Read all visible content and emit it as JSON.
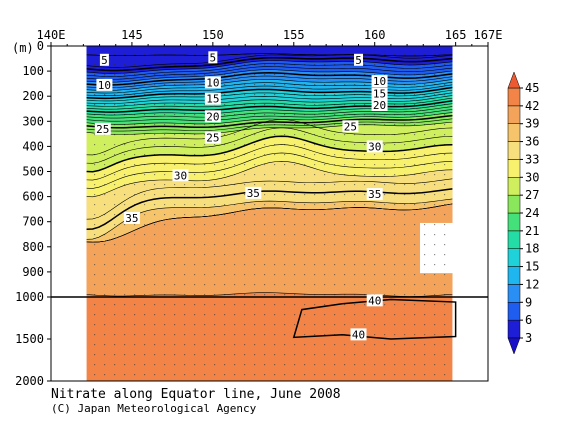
{
  "chart_data": {
    "type": "heatmap",
    "title": "Nitrate along Equator line, June 2008",
    "credit": "(C) Japan Meteorological Agency",
    "x_axis": {
      "range": [
        140,
        167
      ],
      "tick_labels": [
        "140E",
        "145",
        "150",
        "155",
        "160",
        "165",
        "167E"
      ],
      "tick_values": [
        140,
        145,
        150,
        155,
        160,
        165,
        167
      ]
    },
    "y_axis": {
      "unit_label": "(m)",
      "tick_labels": [
        "0",
        "100",
        "200",
        "300",
        "400",
        "500",
        "600",
        "700",
        "800",
        "900",
        "1000",
        "1500",
        "2000"
      ],
      "tick_values": [
        0,
        100,
        200,
        300,
        400,
        500,
        600,
        700,
        800,
        900,
        1000,
        1500,
        2000
      ],
      "scale": "piecewise linear: 0-1000 m upper panel, 1000-2000 m compressed lower panel",
      "direction": "depth increases downward"
    },
    "data_extent": {
      "lon": [
        142.2,
        164.8
      ],
      "depth": [
        0,
        2000
      ]
    },
    "colorbar": {
      "levels": [
        3,
        6,
        9,
        12,
        15,
        18,
        21,
        24,
        27,
        30,
        33,
        36,
        39,
        42,
        45
      ],
      "tick_labels": [
        "3",
        "6",
        "9",
        "12",
        "15",
        "18",
        "21",
        "24",
        "27",
        "30",
        "33",
        "36",
        "39",
        "42",
        "45"
      ],
      "colors": [
        "#1e1ed6",
        "#1f5cf0",
        "#2a8ff5",
        "#1fb5ee",
        "#1fd1d8",
        "#23dca6",
        "#44e07a",
        "#8ae65a",
        "#cfef5e",
        "#f8f16e",
        "#f8df7d",
        "#f5c46b",
        "#f3a45a",
        "#f18446"
      ]
    },
    "contour_labels": [
      {
        "text": "5",
        "lon": 143.3,
        "depth": 55
      },
      {
        "text": "5",
        "lon": 150.0,
        "depth": 45
      },
      {
        "text": "5",
        "lon": 159.0,
        "depth": 55
      },
      {
        "text": "10",
        "lon": 143.3,
        "depth": 155
      },
      {
        "text": "10",
        "lon": 150.0,
        "depth": 145
      },
      {
        "text": "10",
        "lon": 160.3,
        "depth": 140
      },
      {
        "text": "15",
        "lon": 150.0,
        "depth": 210
      },
      {
        "text": "15",
        "lon": 160.3,
        "depth": 190
      },
      {
        "text": "20",
        "lon": 150.0,
        "depth": 280
      },
      {
        "text": "20",
        "lon": 160.3,
        "depth": 235
      },
      {
        "text": "25",
        "lon": 150.0,
        "depth": 365
      },
      {
        "text": "25",
        "lon": 158.5,
        "depth": 320
      },
      {
        "text": "25",
        "lon": 143.2,
        "depth": 330
      },
      {
        "text": "30",
        "lon": 160.0,
        "depth": 400
      },
      {
        "text": "30",
        "lon": 148.0,
        "depth": 515
      },
      {
        "text": "35",
        "lon": 152.5,
        "depth": 585
      },
      {
        "text": "35",
        "lon": 160.0,
        "depth": 590
      },
      {
        "text": "35",
        "lon": 145.0,
        "depth": 685
      },
      {
        "text": "40",
        "lon": 160.0,
        "depth": 1040
      },
      {
        "text": "40",
        "lon": 159.0,
        "depth": 1445
      }
    ]
  }
}
